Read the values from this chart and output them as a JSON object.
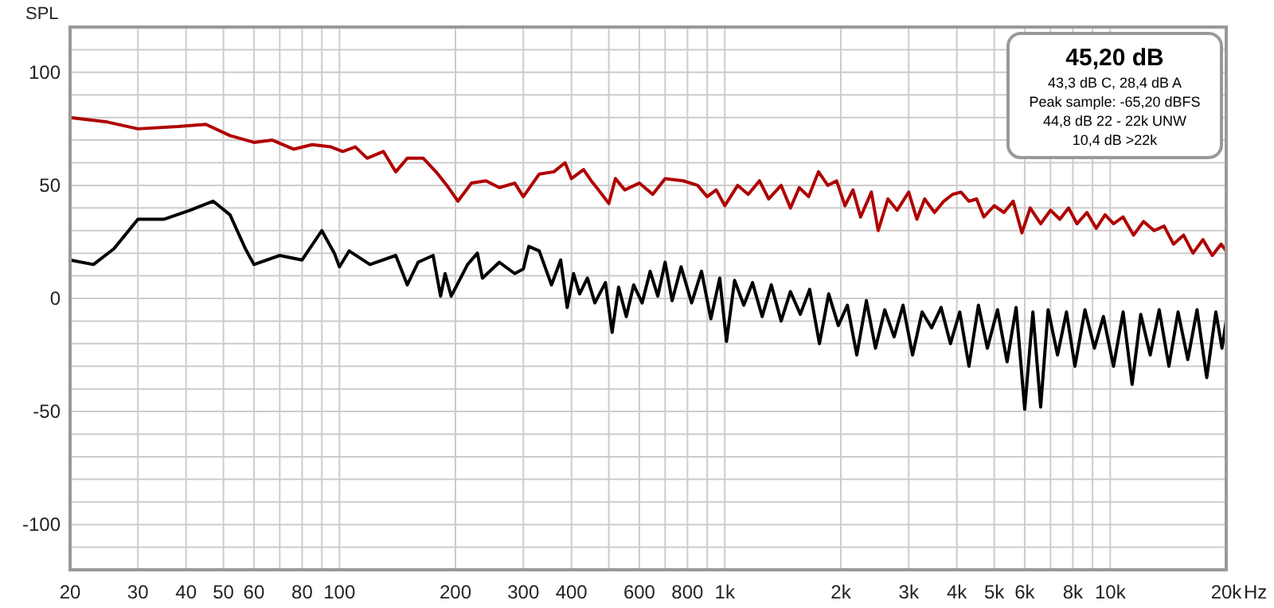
{
  "chart_data": {
    "type": "line",
    "ylabel": "SPL",
    "log": "x",
    "grid": true,
    "xlim": [
      20,
      20000
    ],
    "xticks": [
      20,
      30,
      40,
      50,
      60,
      {
        "value": 70,
        "label": null
      },
      80,
      {
        "value": 90,
        "label": null
      },
      100,
      200,
      300,
      400,
      {
        "value": 500,
        "label": null
      },
      600,
      {
        "value": 700,
        "label": null
      },
      800,
      {
        "value": 900,
        "label": null
      },
      {
        "value": 1000,
        "label": "1k"
      },
      {
        "value": 2000,
        "label": "2k"
      },
      {
        "value": 3000,
        "label": "3k"
      },
      {
        "value": 4000,
        "label": "4k"
      },
      {
        "value": 5000,
        "label": "5k"
      },
      {
        "value": 6000,
        "label": "6k"
      },
      {
        "value": 7000,
        "label": null
      },
      {
        "value": 8000,
        "label": "8k"
      },
      {
        "value": 9000,
        "label": null
      },
      {
        "value": 10000,
        "label": "10k"
      },
      {
        "value": 20000,
        "label": "20k"
      }
    ],
    "xlabel": "Hz",
    "ylim": [
      -120,
      120
    ],
    "yticks": [
      {
        "value": -110,
        "label": null
      },
      -100,
      {
        "value": -90,
        "label": null
      },
      {
        "value": -80,
        "label": null
      },
      {
        "value": -70,
        "label": null
      },
      {
        "value": -60,
        "label": null
      },
      -50,
      {
        "value": -40,
        "label": null
      },
      {
        "value": -30,
        "label": null
      },
      {
        "value": -20,
        "label": null
      },
      {
        "value": -10,
        "label": null
      },
      0,
      {
        "value": 10,
        "label": null
      },
      {
        "value": 20,
        "label": null
      },
      {
        "value": 30,
        "label": null
      },
      {
        "value": 40,
        "label": null
      },
      50,
      {
        "value": 60,
        "label": null
      },
      {
        "value": 70,
        "label": null
      },
      {
        "value": 80,
        "label": null
      },
      {
        "value": 90,
        "label": null
      },
      100,
      {
        "value": 110,
        "label": null
      }
    ],
    "annotations": [
      "45,20 dB",
      "43,3 dB C, 28,4 dB A",
      "Peak sample: -65,20 dBFS",
      "44,8 dB 22 - 22k UNW",
      "10,4 dB >22k"
    ],
    "series": [
      {
        "color": "#b00000",
        "x": [
          20,
          25,
          30,
          38,
          45,
          52,
          60,
          67,
          76,
          85,
          95,
          102,
          110,
          118,
          130,
          140,
          150,
          165,
          178,
          190,
          203,
          220,
          240,
          260,
          285,
          300,
          330,
          360,
          385,
          400,
          430,
          450,
          470,
          500,
          520,
          550,
          600,
          650,
          700,
          780,
          850,
          900,
          950,
          1000,
          1080,
          1150,
          1230,
          1300,
          1400,
          1480,
          1560,
          1650,
          1750,
          1850,
          1950,
          2050,
          2150,
          2250,
          2400,
          2500,
          2650,
          2800,
          3000,
          3150,
          3300,
          3500,
          3700,
          3900,
          4100,
          4300,
          4500,
          4700,
          5000,
          5300,
          5600,
          5900,
          6200,
          6600,
          7000,
          7400,
          7800,
          8200,
          8700,
          9200,
          9700,
          10200,
          10800,
          11500,
          12200,
          13000,
          13800,
          14600,
          15500,
          16400,
          17400,
          18400,
          19400,
          20000
        ],
        "values": [
          80,
          78,
          75,
          76,
          77,
          72,
          69,
          70,
          66,
          68,
          67,
          65,
          67,
          62,
          65,
          56,
          62,
          62,
          56,
          50,
          43,
          51,
          52,
          49,
          51,
          45,
          55,
          56,
          60,
          53,
          57,
          52,
          48,
          42,
          53,
          48,
          51,
          46,
          53,
          52,
          50,
          45,
          48,
          41,
          50,
          46,
          52,
          44,
          50,
          40,
          49,
          45,
          56,
          50,
          52,
          41,
          48,
          36,
          47,
          30,
          44,
          39,
          47,
          35,
          44,
          38,
          43,
          46,
          47,
          43,
          44,
          36,
          41,
          38,
          43,
          29,
          40,
          33,
          39,
          35,
          40,
          33,
          38,
          31,
          37,
          33,
          36,
          28,
          34,
          30,
          32,
          24,
          28,
          20,
          26,
          19,
          24,
          21
        ]
      },
      {
        "color": "#000000",
        "x": [
          20,
          23,
          26,
          30,
          35,
          41,
          47,
          52,
          57,
          60,
          70,
          80,
          90,
          97,
          100,
          106,
          120,
          140,
          150,
          160,
          175,
          183,
          188,
          195,
          215,
          228,
          235,
          260,
          285,
          300,
          310,
          330,
          355,
          375,
          390,
          405,
          420,
          440,
          460,
          490,
          510,
          530,
          555,
          580,
          610,
          640,
          670,
          700,
          730,
          770,
          820,
          870,
          920,
          970,
          1010,
          1060,
          1120,
          1180,
          1250,
          1320,
          1400,
          1480,
          1570,
          1660,
          1760,
          1860,
          1970,
          2080,
          2200,
          2330,
          2460,
          2600,
          2750,
          2900,
          3070,
          3250,
          3440,
          3640,
          3850,
          4070,
          4300,
          4550,
          4800,
          5100,
          5400,
          5700,
          6000,
          6300,
          6600,
          6900,
          7300,
          7700,
          8100,
          8600,
          9100,
          9600,
          10200,
          10800,
          11400,
          12000,
          12700,
          13400,
          14200,
          15000,
          15900,
          16800,
          17800,
          18800,
          19500,
          20000
        ],
        "values": [
          17,
          15,
          22,
          35,
          35,
          39,
          43,
          37,
          22,
          15,
          19,
          17,
          30,
          20,
          14,
          21,
          15,
          19,
          6,
          16,
          19,
          1,
          11,
          1,
          15,
          20,
          9,
          16,
          11,
          13,
          23,
          21,
          6,
          17,
          -4,
          11,
          2,
          9,
          -2,
          7,
          -15,
          5,
          -8,
          6,
          -2,
          12,
          1,
          16,
          -1,
          14,
          -2,
          12,
          -9,
          9,
          -19,
          8,
          -3,
          7,
          -8,
          6,
          -10,
          3,
          -7,
          4,
          -20,
          2,
          -12,
          -3,
          -25,
          -1,
          -22,
          -5,
          -17,
          -3,
          -25,
          -6,
          -13,
          -4,
          -20,
          -6,
          -30,
          -3,
          -22,
          -5,
          -28,
          -4,
          -49,
          -6,
          -48,
          -5,
          -25,
          -6,
          -30,
          -5,
          -22,
          -8,
          -30,
          -6,
          -38,
          -7,
          -25,
          -5,
          -30,
          -6,
          -27,
          -5,
          -35,
          -6,
          -22,
          -10
        ]
      }
    ]
  }
}
